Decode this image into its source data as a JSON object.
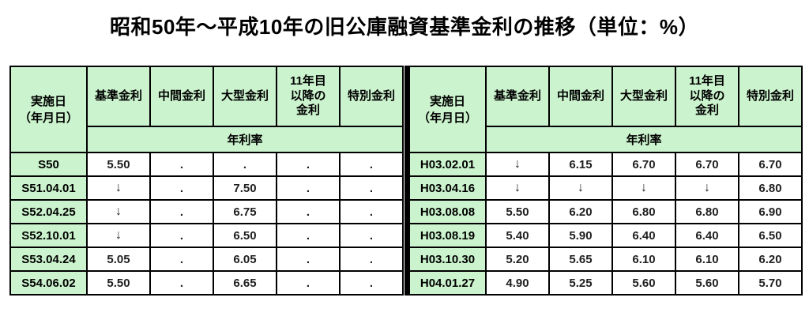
{
  "page": {
    "title": "昭和50年～平成10年の旧公庫融資基準金利の推移（単位：%）"
  },
  "colors": {
    "header_bg": "#cbf3cd",
    "border": "#000000",
    "text": "#000000"
  },
  "header": {
    "date_col": "実施日\n（年月日）",
    "rate_cols": [
      "基準金利",
      "中間金利",
      "大型金利",
      "11年目\n以降の\n金利",
      "特別金利"
    ],
    "subheader": "年利率"
  },
  "tables": [
    {
      "name": "showa-panel",
      "rows": [
        {
          "date": "S50",
          "values": [
            "5.50",
            ".",
            ".",
            ".",
            "."
          ]
        },
        {
          "date": "S51.04.01",
          "values": [
            "↓",
            ".",
            "7.50",
            ".",
            "."
          ]
        },
        {
          "date": "S52.04.25",
          "values": [
            "↓",
            ".",
            "6.75",
            ".",
            "."
          ]
        },
        {
          "date": "S52.10.01",
          "values": [
            "↓",
            ".",
            "6.50",
            ".",
            "."
          ]
        },
        {
          "date": "S53.04.24",
          "values": [
            "5.05",
            ".",
            "6.05",
            ".",
            "."
          ]
        },
        {
          "date": "S54.06.02",
          "values": [
            "5.50",
            ".",
            "6.65",
            ".",
            "."
          ]
        }
      ]
    },
    {
      "name": "heisei-panel",
      "rows": [
        {
          "date": "H03.02.01",
          "values": [
            "↓",
            "6.15",
            "6.70",
            "6.70",
            "6.70"
          ]
        },
        {
          "date": "H03.04.16",
          "values": [
            "↓",
            "↓",
            "↓",
            "↓",
            "6.80"
          ]
        },
        {
          "date": "H03.08.08",
          "values": [
            "5.50",
            "6.20",
            "6.80",
            "6.80",
            "6.90"
          ]
        },
        {
          "date": "H03.08.19",
          "values": [
            "5.40",
            "5.90",
            "6.40",
            "6.40",
            "6.50"
          ]
        },
        {
          "date": "H03.10.30",
          "values": [
            "5.20",
            "5.65",
            "6.10",
            "6.10",
            "6.20"
          ]
        },
        {
          "date": "H04.01.27",
          "values": [
            "4.90",
            "5.25",
            "5.60",
            "5.60",
            "5.70"
          ]
        }
      ]
    }
  ]
}
